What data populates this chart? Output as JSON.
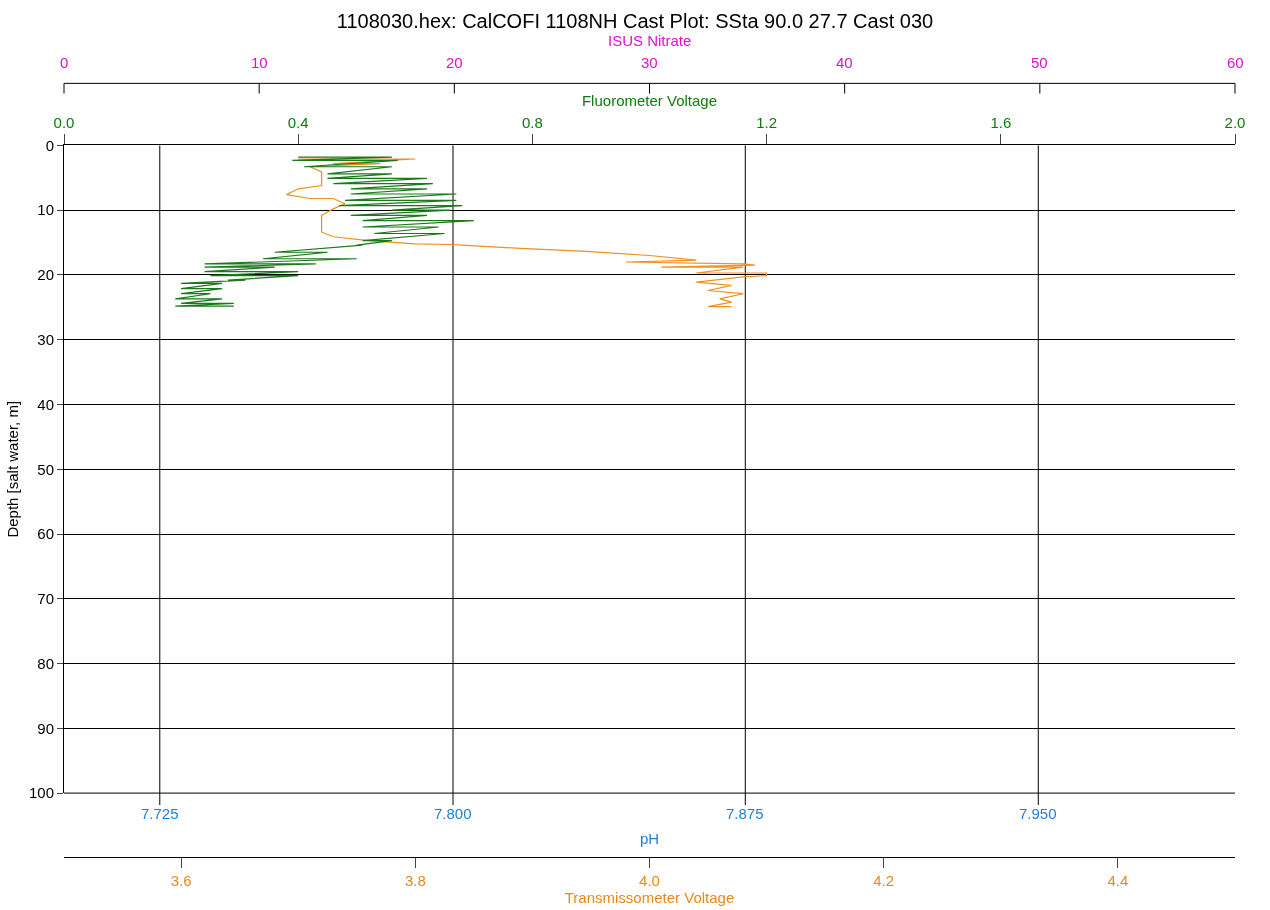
{
  "chart_data": {
    "type": "line",
    "title": "1108030.hex: CalCOFI 1108NH Cast Plot: SSta 90.0 27.7 Cast 030",
    "ylabel": "Depth [salt water, m]",
    "xlabel": "Transmissometer Voltage",
    "x2label": "Fluorometer Voltage",
    "annotations": [
      "pH",
      "7.725",
      "7.800",
      "7.875",
      "7.950",
      "ISUS Nitrate",
      "0",
      "10",
      "20",
      "30",
      "40",
      "50",
      "60"
    ],
    "ylim": [
      100,
      0
    ],
    "yticks": [
      0,
      10,
      20,
      30,
      40,
      50,
      60,
      70,
      80,
      90,
      100
    ],
    "xlim": [
      3.5,
      4.5
    ],
    "xticks": [
      3.6,
      3.8,
      {
        "value": 4,
        "label": "4.0"
      },
      4.2,
      4.4
    ],
    "x2lim": [
      0,
      2
    ],
    "x2ticks": [
      {
        "value": 0,
        "label": "0.0"
      },
      0.4,
      0.8,
      1.2,
      1.6,
      {
        "value": 2,
        "label": "2.0"
      }
    ],
    "grid": "y",
    "marker": "none",
    "line_style": "solid",
    "series": [
      {
        "axis": "x2",
        "color": "#1a7a1a",
        "x": [
          0.4,
          0.56,
          0.39,
          0.57,
          0.41,
          0.56,
          0.45,
          0.56,
          0.45,
          0.62,
          0.46,
          0.63,
          0.49,
          0.62,
          0.49,
          0.67,
          0.48,
          0.67,
          0.47,
          0.68,
          0.56,
          0.66,
          0.49,
          0.62,
          0.51,
          0.7,
          0.51,
          0.64,
          0.53,
          0.65,
          0.51,
          0.56,
          0.5,
          0.51,
          0.36,
          0.45,
          0.34,
          0.5,
          0.24,
          0.43,
          0.24,
          0.36,
          0.24,
          0.4,
          0.25,
          0.4,
          0.28,
          0.31,
          0.2,
          0.27,
          0.2,
          0.27,
          0.2,
          0.25,
          0.19,
          0.27,
          0.2,
          0.29,
          0.19,
          0.29
        ],
        "values": [
          1.8,
          1.8,
          2.3,
          2.3,
          3.3,
          3.3,
          4.4,
          4.4,
          5.1,
          5.1,
          5.9,
          5.9,
          6.7,
          6.7,
          7.5,
          7.5,
          8.5,
          8.5,
          9.3,
          9.3,
          10.0,
          10.0,
          10.8,
          10.8,
          11.6,
          11.6,
          12.6,
          12.6,
          13.6,
          13.6,
          14.7,
          14.7,
          15.4,
          15.4,
          16.5,
          16.5,
          17.5,
          17.5,
          18.3,
          18.3,
          18.8,
          18.8,
          19.5,
          19.5,
          20.1,
          20.1,
          20.8,
          20.8,
          21.3,
          21.3,
          22.1,
          22.1,
          22.9,
          22.9,
          23.7,
          23.7,
          24.4,
          24.4,
          24.8,
          24.8
        ]
      },
      {
        "color": "#f0901e",
        "x": [
          3.7,
          3.8,
          3.73,
          3.77,
          3.71,
          3.72,
          3.72,
          3.72,
          3.7,
          3.69,
          3.71,
          3.73,
          3.74,
          3.73,
          3.72,
          3.72,
          3.72,
          3.73,
          3.76,
          3.8,
          3.83,
          3.84,
          3.89,
          3.95,
          4.0,
          4.04,
          3.98,
          4.08,
          4.09,
          4.01,
          4.08,
          4.04,
          4.1,
          4.1,
          4.08,
          4.04,
          4.07,
          4.05,
          4.08,
          4.06,
          4.07,
          4.05,
          4.07
        ],
        "values": [
          2.1,
          2.1,
          2.8,
          2.8,
          3.3,
          4.1,
          5.1,
          6.2,
          6.7,
          7.6,
          8.2,
          8.2,
          9.0,
          9.8,
          10.8,
          11.8,
          13.4,
          14.1,
          14.7,
          15.2,
          15.3,
          15.4,
          15.9,
          16.4,
          17.0,
          17.7,
          18.0,
          18.3,
          18.5,
          18.8,
          18.8,
          19.7,
          19.7,
          20.1,
          20.3,
          21.1,
          21.6,
          22.4,
          22.9,
          23.7,
          24.2,
          24.9,
          24.9
        ]
      }
    ]
  }
}
